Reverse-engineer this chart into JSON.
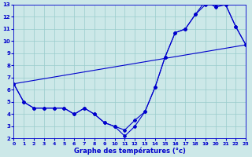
{
  "bg_color": "#cce8e8",
  "grid_color": "#99cccc",
  "line_color": "#0000cc",
  "xlim": [
    0,
    23
  ],
  "ylim": [
    2,
    13
  ],
  "yticks": [
    2,
    3,
    4,
    5,
    6,
    7,
    8,
    9,
    10,
    11,
    12,
    13
  ],
  "xticks": [
    0,
    1,
    2,
    3,
    4,
    5,
    6,
    7,
    8,
    9,
    10,
    11,
    12,
    13,
    14,
    15,
    16,
    17,
    18,
    19,
    20,
    21,
    22,
    23
  ],
  "xlabel": "Graphe des températures (°c)",
  "curve1_x": [
    0,
    1,
    2,
    3,
    4,
    5,
    6,
    7,
    8,
    9,
    10,
    11,
    12,
    13,
    14,
    15,
    16,
    17,
    18,
    19,
    20,
    21,
    22,
    23
  ],
  "curve1_y": [
    6.5,
    5.0,
    4.5,
    4.5,
    4.5,
    4.5,
    4.0,
    4.5,
    4.0,
    3.3,
    3.0,
    2.2,
    3.0,
    4.2,
    6.2,
    8.7,
    10.7,
    11.0,
    12.2,
    13.3,
    12.8,
    13.0,
    11.2,
    9.7
  ],
  "curve2_x": [
    0,
    1,
    2,
    3,
    4,
    5,
    6,
    7,
    8,
    9,
    10,
    11,
    12,
    13,
    14,
    15,
    16,
    17,
    18,
    19,
    20,
    21,
    22,
    23
  ],
  "curve2_y": [
    6.5,
    5.0,
    4.5,
    4.5,
    4.5,
    4.5,
    4.0,
    4.5,
    4.0,
    3.3,
    3.0,
    2.7,
    3.5,
    4.2,
    6.2,
    8.7,
    10.7,
    11.0,
    12.2,
    13.0,
    13.0,
    13.0,
    11.2,
    9.7
  ],
  "line3_x": [
    0,
    23
  ],
  "line3_y": [
    6.5,
    9.7
  ]
}
